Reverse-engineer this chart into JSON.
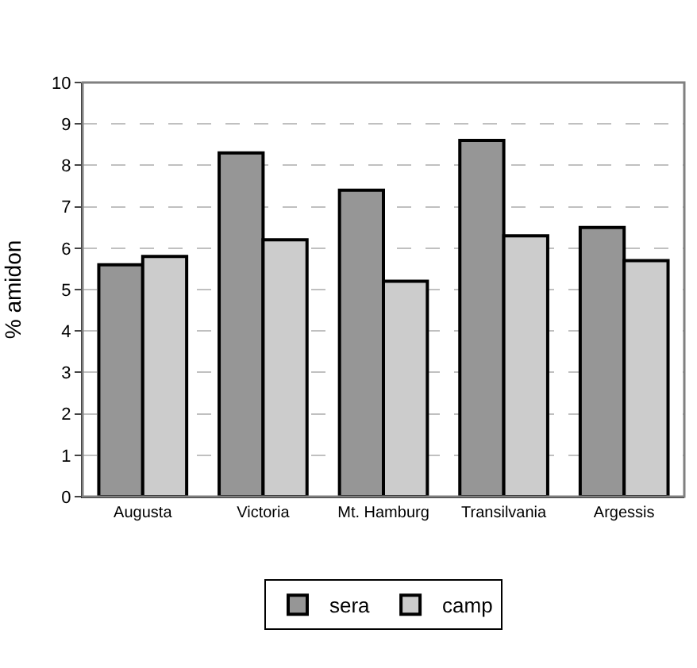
{
  "chart_data": {
    "type": "bar",
    "ylabel": "% amidon",
    "categories": [
      "Augusta",
      "Victoria",
      "Mt. Hamburg",
      "Transilvania",
      "Argessis"
    ],
    "series": [
      {
        "name": "sera",
        "color": "#969696",
        "values": [
          5.6,
          8.3,
          7.4,
          8.6,
          6.5
        ]
      },
      {
        "name": "camp",
        "color": "#cccccc",
        "values": [
          5.8,
          6.2,
          5.2,
          6.3,
          5.7
        ]
      }
    ],
    "ylim": [
      0,
      10
    ],
    "yticks": [
      0,
      1,
      2,
      3,
      4,
      5,
      6,
      7,
      8,
      9,
      10
    ],
    "grid": "y",
    "legend": "bottom"
  }
}
